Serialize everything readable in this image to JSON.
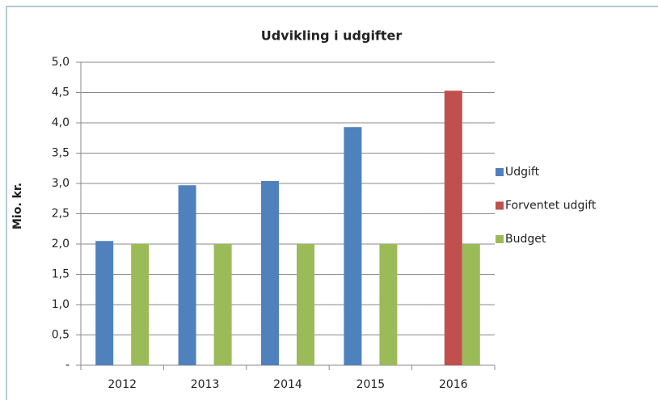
{
  "chart_data": {
    "type": "bar",
    "title": "Udvikling i udgifter",
    "y_label": "Mio. kr.",
    "categories": [
      "2012",
      "2013",
      "2014",
      "2015",
      "2016"
    ],
    "series": [
      {
        "name": "Udgift",
        "color": "#4f81bd",
        "values": [
          2.05,
          2.97,
          3.04,
          3.93,
          null
        ]
      },
      {
        "name": "Forventet udgift",
        "color": "#c0504d",
        "values": [
          null,
          null,
          null,
          null,
          4.53
        ]
      },
      {
        "name": "Budget",
        "color": "#9bbb59",
        "values": [
          2.0,
          2.0,
          2.0,
          2.0,
          2.0
        ]
      }
    ],
    "ylim": [
      0,
      5
    ],
    "yticks": [
      {
        "value": 0,
        "label": "-"
      },
      {
        "value": 0.5,
        "label": "0,5"
      },
      {
        "value": 1,
        "label": "1,0"
      },
      {
        "value": 1.5,
        "label": "1,5"
      },
      {
        "value": 2,
        "label": "2,0"
      },
      {
        "value": 2.5,
        "label": "2,5"
      },
      {
        "value": 3,
        "label": "3,0"
      },
      {
        "value": 3.5,
        "label": "3,5"
      },
      {
        "value": 4,
        "label": "4,0"
      },
      {
        "value": 4.5,
        "label": "4,5"
      },
      {
        "value": 5,
        "label": "5,0"
      }
    ],
    "grid": true,
    "legend": "right"
  }
}
